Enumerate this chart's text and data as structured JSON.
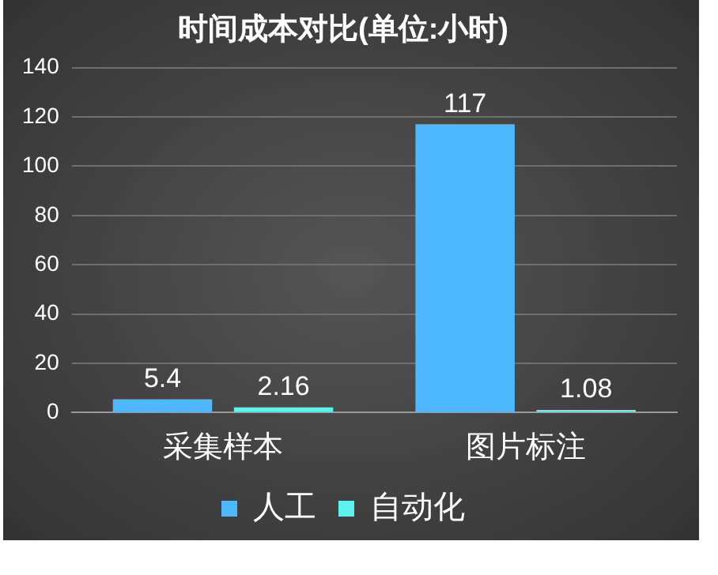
{
  "chart_data": {
    "type": "bar",
    "title": "时间成本对比(单位:小时)",
    "categories": [
      "采集样本",
      "图片标注"
    ],
    "series": [
      {
        "name": "人工",
        "color": "#4db8ff",
        "values": [
          5.4,
          117
        ]
      },
      {
        "name": "自动化",
        "color": "#5cf2ee",
        "values": [
          2.16,
          1.08
        ]
      }
    ],
    "ylim": [
      0,
      140
    ],
    "yticks": [
      0,
      20,
      40,
      60,
      80,
      100,
      120,
      140
    ],
    "grid": "y",
    "legend": "bottom",
    "data_labels": true
  }
}
